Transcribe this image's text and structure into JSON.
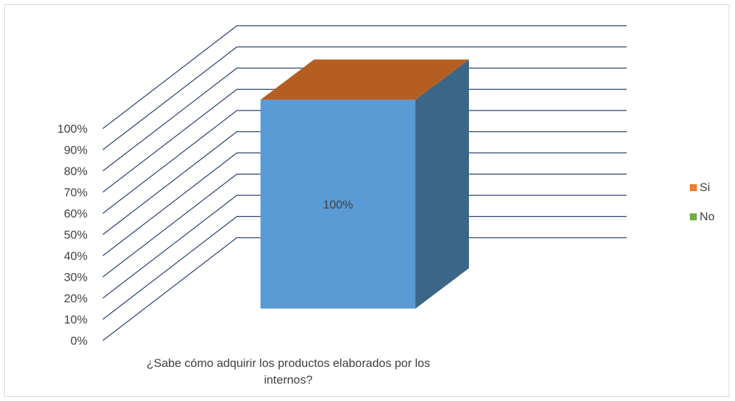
{
  "chart_data": {
    "type": "bar",
    "categories": [
      "¿Sabe cómo adquirir los productos elaborados por los internos?"
    ],
    "category_lines": [
      "¿Sabe cómo adquirir los productos elaborados por los",
      "internos?"
    ],
    "series": [
      {
        "name": "Si",
        "values": [
          100
        ],
        "color": "#ED7D31"
      },
      {
        "name": "No",
        "values": [
          0
        ],
        "color": "#70AD47"
      }
    ],
    "data_labels": [
      "100%"
    ],
    "ylim": [
      0,
      100
    ],
    "yticks": [
      "0%",
      "10%",
      "20%",
      "30%",
      "40%",
      "50%",
      "60%",
      "70%",
      "80%",
      "90%",
      "100%"
    ],
    "grid": true,
    "legend_position": "right",
    "bar_face_color": "#5B9BD5",
    "bar_side_color": "#3A6687",
    "bar_top_color": "#B55E22",
    "grid_color": "#1F3A68"
  }
}
